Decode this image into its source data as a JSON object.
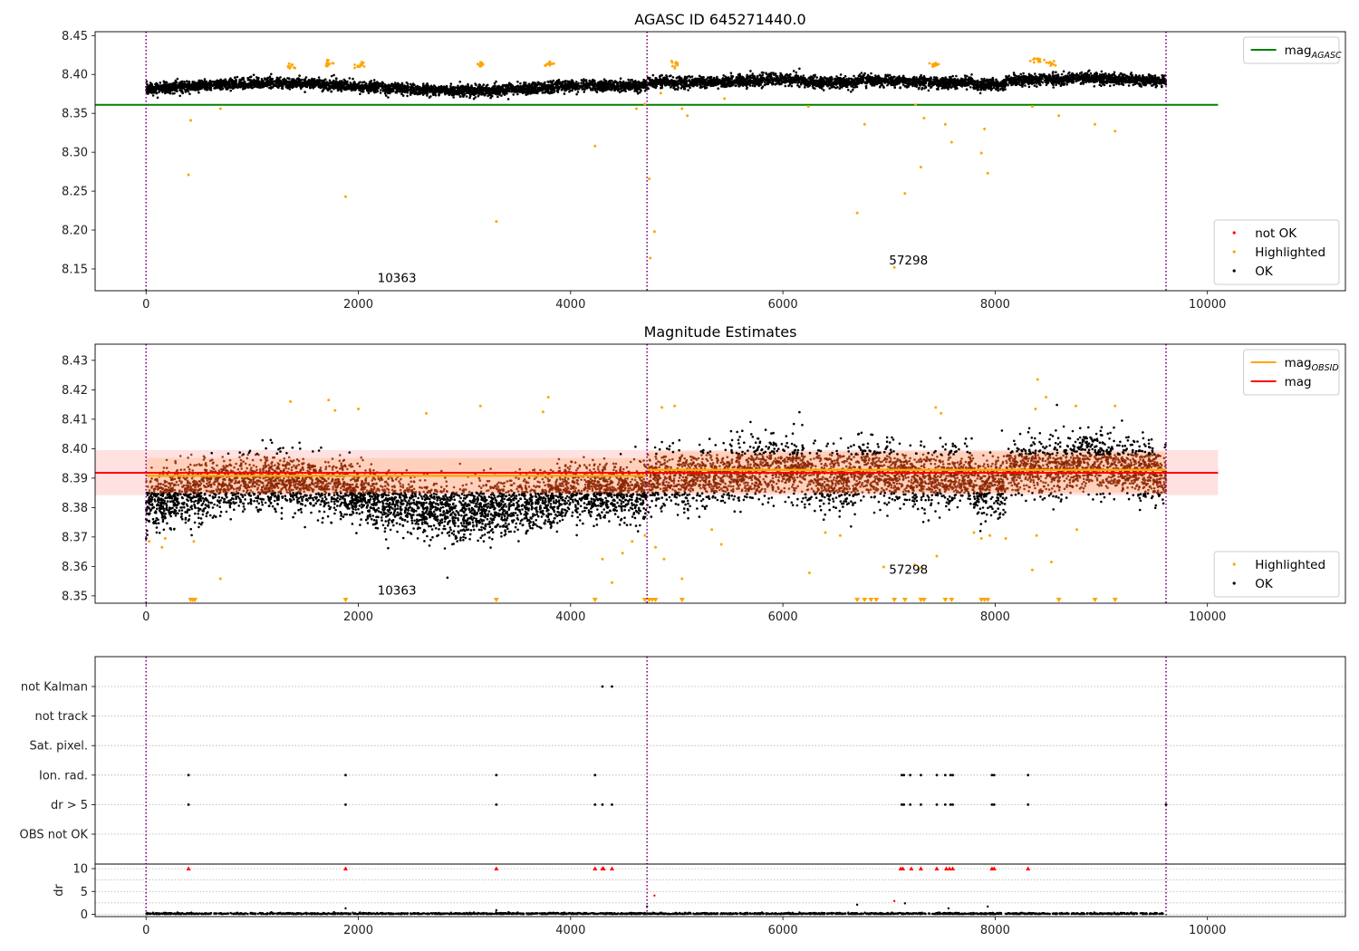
{
  "chart_data": [
    {
      "type": "scatter",
      "title": "AGASC ID 645271440.0",
      "xlim": [
        -480,
        11300
      ],
      "ylim": [
        8.122,
        8.455
      ],
      "xticks": [
        0,
        2000,
        4000,
        6000,
        8000,
        10000
      ],
      "xtick_labels": [
        "0",
        "2000",
        "4000",
        "6000",
        "8000",
        "10000"
      ],
      "yticks": [
        8.15,
        8.2,
        8.25,
        8.3,
        8.35,
        8.4,
        8.45
      ],
      "ytick_labels": [
        "8.15",
        "8.20",
        "8.25",
        "8.30",
        "8.35",
        "8.40",
        "8.45"
      ],
      "obs_boundaries": [
        0,
        4720,
        9610
      ],
      "annotations": [
        {
          "text": "10363",
          "x": 2180,
          "y": 8.133
        },
        {
          "text": "57298",
          "x": 7000,
          "y": 8.156
        }
      ],
      "lines": [
        {
          "name": "mag_AGASC",
          "label": "mag",
          "subscript": "AGASC",
          "y": 8.361,
          "x_range": [
            -480,
            10100
          ],
          "color": "#008000"
        }
      ],
      "bands": [],
      "segments": [
        {
          "x": [
            0,
            4720
          ],
          "base": 8.384
        },
        {
          "x": [
            4720,
            9610
          ],
          "base": 8.392
        }
      ],
      "highlighted_points": [
        [
          420,
          8.341
        ],
        [
          400,
          8.271
        ],
        [
          700,
          8.356
        ],
        [
          1880,
          8.243
        ],
        [
          3300,
          8.211
        ],
        [
          4230,
          8.308
        ],
        [
          4620,
          8.356
        ],
        [
          4700,
          8.362
        ],
        [
          4740,
          8.266
        ],
        [
          4790,
          8.198
        ],
        [
          4750,
          8.164
        ],
        [
          5050,
          8.356
        ],
        [
          5100,
          8.347
        ],
        [
          6770,
          8.336
        ],
        [
          6700,
          8.222
        ],
        [
          7050,
          8.152
        ],
        [
          7150,
          8.247
        ],
        [
          7300,
          8.281
        ],
        [
          7250,
          8.361
        ],
        [
          7330,
          8.344
        ],
        [
          7530,
          8.336
        ],
        [
          7590,
          8.313
        ],
        [
          7870,
          8.299
        ],
        [
          7900,
          8.33
        ],
        [
          7930,
          8.273
        ],
        [
          8350,
          8.359
        ],
        [
          8600,
          8.347
        ],
        [
          8940,
          8.336
        ],
        [
          9130,
          8.327
        ],
        [
          6240,
          8.359
        ],
        [
          5450,
          8.369
        ],
        [
          4850,
          8.376
        ]
      ],
      "highlighted_clusters": [
        {
          "x": 1720,
          "y": 8.414
        },
        {
          "x": 1360,
          "y": 8.411
        },
        {
          "x": 3790,
          "y": 8.414
        },
        {
          "x": 7440,
          "y": 8.412
        },
        {
          "x": 8410,
          "y": 8.419
        },
        {
          "x": 8520,
          "y": 8.414
        },
        {
          "x": 2000,
          "y": 8.412
        },
        {
          "x": 3150,
          "y": 8.413
        },
        {
          "x": 4980,
          "y": 8.413
        }
      ],
      "legend": {
        "placement": "upper-right",
        "entries": [
          "mag_AGASC"
        ]
      },
      "legend2": {
        "placement": "lower-right",
        "entries": [
          "not OK",
          "Highlighted",
          "OK"
        ]
      }
    },
    {
      "type": "scatter",
      "title": "Magnitude Estimates",
      "xlim": [
        -480,
        11300
      ],
      "ylim": [
        8.3475,
        8.4355
      ],
      "xticks": [
        0,
        2000,
        4000,
        6000,
        8000,
        10000
      ],
      "xtick_labels": [
        "0",
        "2000",
        "4000",
        "6000",
        "8000",
        "10000"
      ],
      "yticks": [
        8.35,
        8.36,
        8.37,
        8.38,
        8.39,
        8.4,
        8.41,
        8.42,
        8.43
      ],
      "ytick_labels": [
        "8.35",
        "8.36",
        "8.37",
        "8.38",
        "8.39",
        "8.40",
        "8.41",
        "8.42",
        "8.43"
      ],
      "obs_boundaries": [
        0,
        4720,
        9610
      ],
      "annotations": [
        {
          "text": "10363",
          "x": 2180,
          "y": 8.3505
        },
        {
          "text": "57298",
          "x": 7000,
          "y": 8.3575
        }
      ],
      "lines": [
        {
          "name": "mag",
          "label": "mag",
          "y": 8.3918,
          "x_range": [
            -480,
            10100
          ],
          "color": "#ff0000"
        }
      ],
      "obsid_lines": [
        {
          "x": [
            0,
            4720
          ],
          "y": 8.3908
        },
        {
          "x": [
            4720,
            9610
          ],
          "y": 8.3928
        }
      ],
      "bands": [
        {
          "x_range": [
            -480,
            10100
          ],
          "y": [
            8.3842,
            8.3995
          ],
          "color": "#ffb0b0"
        },
        {
          "x_range": [
            0,
            4720
          ],
          "y": [
            8.3848,
            8.3968
          ],
          "color": "#ffb070"
        },
        {
          "x_range": [
            4720,
            9610
          ],
          "y": [
            8.385,
            8.399
          ],
          "color": "#ffb070"
        }
      ],
      "highlighted_points": [
        [
          30,
          8.3685
        ],
        [
          150,
          8.3665
        ],
        [
          180,
          8.3695
        ],
        [
          450,
          8.3685
        ],
        [
          700,
          8.3558
        ],
        [
          4300,
          8.3625
        ],
        [
          4390,
          8.3545
        ],
        [
          4490,
          8.3645
        ],
        [
          4580,
          8.3685
        ],
        [
          4700,
          8.3705
        ],
        [
          4800,
          8.3665
        ],
        [
          4880,
          8.3625
        ],
        [
          5050,
          8.3558
        ],
        [
          5330,
          8.3725
        ],
        [
          5420,
          8.3675
        ],
        [
          6250,
          8.3578
        ],
        [
          6400,
          8.3715
        ],
        [
          6540,
          8.3705
        ],
        [
          6950,
          8.3598
        ],
        [
          7240,
          8.3605
        ],
        [
          7300,
          8.3595
        ],
        [
          7450,
          8.3635
        ],
        [
          7800,
          8.3715
        ],
        [
          7870,
          8.3695
        ],
        [
          7950,
          8.3705
        ],
        [
          8100,
          8.3695
        ],
        [
          8350,
          8.3588
        ],
        [
          8390,
          8.3705
        ],
        [
          8530,
          8.3615
        ],
        [
          8770,
          8.3725
        ],
        [
          8760,
          8.4145
        ],
        [
          8400,
          8.4235
        ],
        [
          8480,
          8.4175
        ],
        [
          8380,
          8.4135
        ],
        [
          1360,
          8.416
        ],
        [
          1720,
          8.4165
        ],
        [
          1780,
          8.413
        ],
        [
          2000,
          8.4135
        ],
        [
          2640,
          8.412
        ],
        [
          3150,
          8.4145
        ],
        [
          3790,
          8.4175
        ],
        [
          3740,
          8.4125
        ],
        [
          4860,
          8.414
        ],
        [
          4980,
          8.4145
        ],
        [
          7440,
          8.414
        ],
        [
          7490,
          8.412
        ],
        [
          9130,
          8.4145
        ]
      ],
      "offscale_markers": [
        420,
        440,
        460,
        1880,
        3300,
        4230,
        4700,
        4740,
        4770,
        4800,
        5050,
        6700,
        6770,
        6830,
        6880,
        7050,
        7150,
        7300,
        7330,
        7530,
        7590,
        7870,
        7900,
        7930,
        8600,
        8940,
        9130
      ],
      "legend": {
        "placement": "upper-right",
        "entries": [
          "mag_OBSID",
          "mag"
        ]
      },
      "legend2": {
        "placement": "lower-right",
        "entries": [
          "Highlighted",
          "OK"
        ]
      }
    },
    {
      "type": "scatter",
      "title": "",
      "xlim": [
        -480,
        11300
      ],
      "flag_rows": [
        "not Kalman",
        "not track",
        "Sat. pixel.",
        "Ion. rad.",
        "dr > 5",
        "OBS not OK"
      ],
      "obs_boundaries": [
        0,
        4720,
        9610
      ],
      "flag_points": {
        "not Kalman": [
          4300,
          4390
        ],
        "not track": [],
        "Sat. pixel.": [],
        "Ion. rad.": [
          400,
          1880,
          3300,
          4230,
          7120,
          7140,
          7200,
          7300,
          7450,
          7530,
          7580,
          7600,
          7970,
          7990,
          8310
        ],
        "dr > 5": [
          400,
          1880,
          3300,
          4230,
          4300,
          4390,
          7120,
          7140,
          7200,
          7300,
          7450,
          7530,
          7580,
          7600,
          7970,
          7990,
          8310,
          9610
        ],
        "OBS not OK": []
      },
      "dr_panel": {
        "ylabel": "dr",
        "ylim": [
          -0.5,
          11
        ],
        "yticks": [
          0,
          5,
          10
        ],
        "ytick_labels": [
          "0",
          "5",
          "10"
        ],
        "clipped_at": 10,
        "clipped_points": [
          400,
          1880,
          3300,
          4230,
          4300,
          4310,
          4390,
          7110,
          7130,
          7210,
          7300,
          7450,
          7540,
          7570,
          7600,
          7970,
          7990,
          8310
        ],
        "scattered_points": [
          [
            1880,
            1.3
          ],
          [
            3300,
            0.9
          ],
          [
            4720,
            1.7
          ],
          [
            4790,
            4.1
          ],
          [
            6700,
            2.1
          ],
          [
            7050,
            2.9
          ],
          [
            7150,
            2.4
          ],
          [
            7560,
            1.3
          ],
          [
            7930,
            1.7
          ]
        ]
      }
    }
  ],
  "legend_labels": {
    "mag_AGASC": {
      "main": "mag",
      "sub": "AGASC"
    },
    "mag_OBSID": {
      "main": "mag",
      "sub": "OBSID"
    },
    "mag": {
      "main": "mag",
      "sub": ""
    },
    "not OK": {
      "main": "not OK",
      "sub": ""
    },
    "Highlighted": {
      "main": "Highlighted",
      "sub": ""
    },
    "OK": {
      "main": "OK",
      "sub": ""
    }
  },
  "colors": {
    "ok": "#000000",
    "highlighted": "#ffa500",
    "not_ok": "#ff0000",
    "agasc_line": "#008000",
    "mag_line": "#ff0000",
    "obsid_line": "#ffa500",
    "obs_boundary": "#800080",
    "ok_band_overlay": "#8b2500",
    "flag_grid": "#b0b0b0"
  }
}
